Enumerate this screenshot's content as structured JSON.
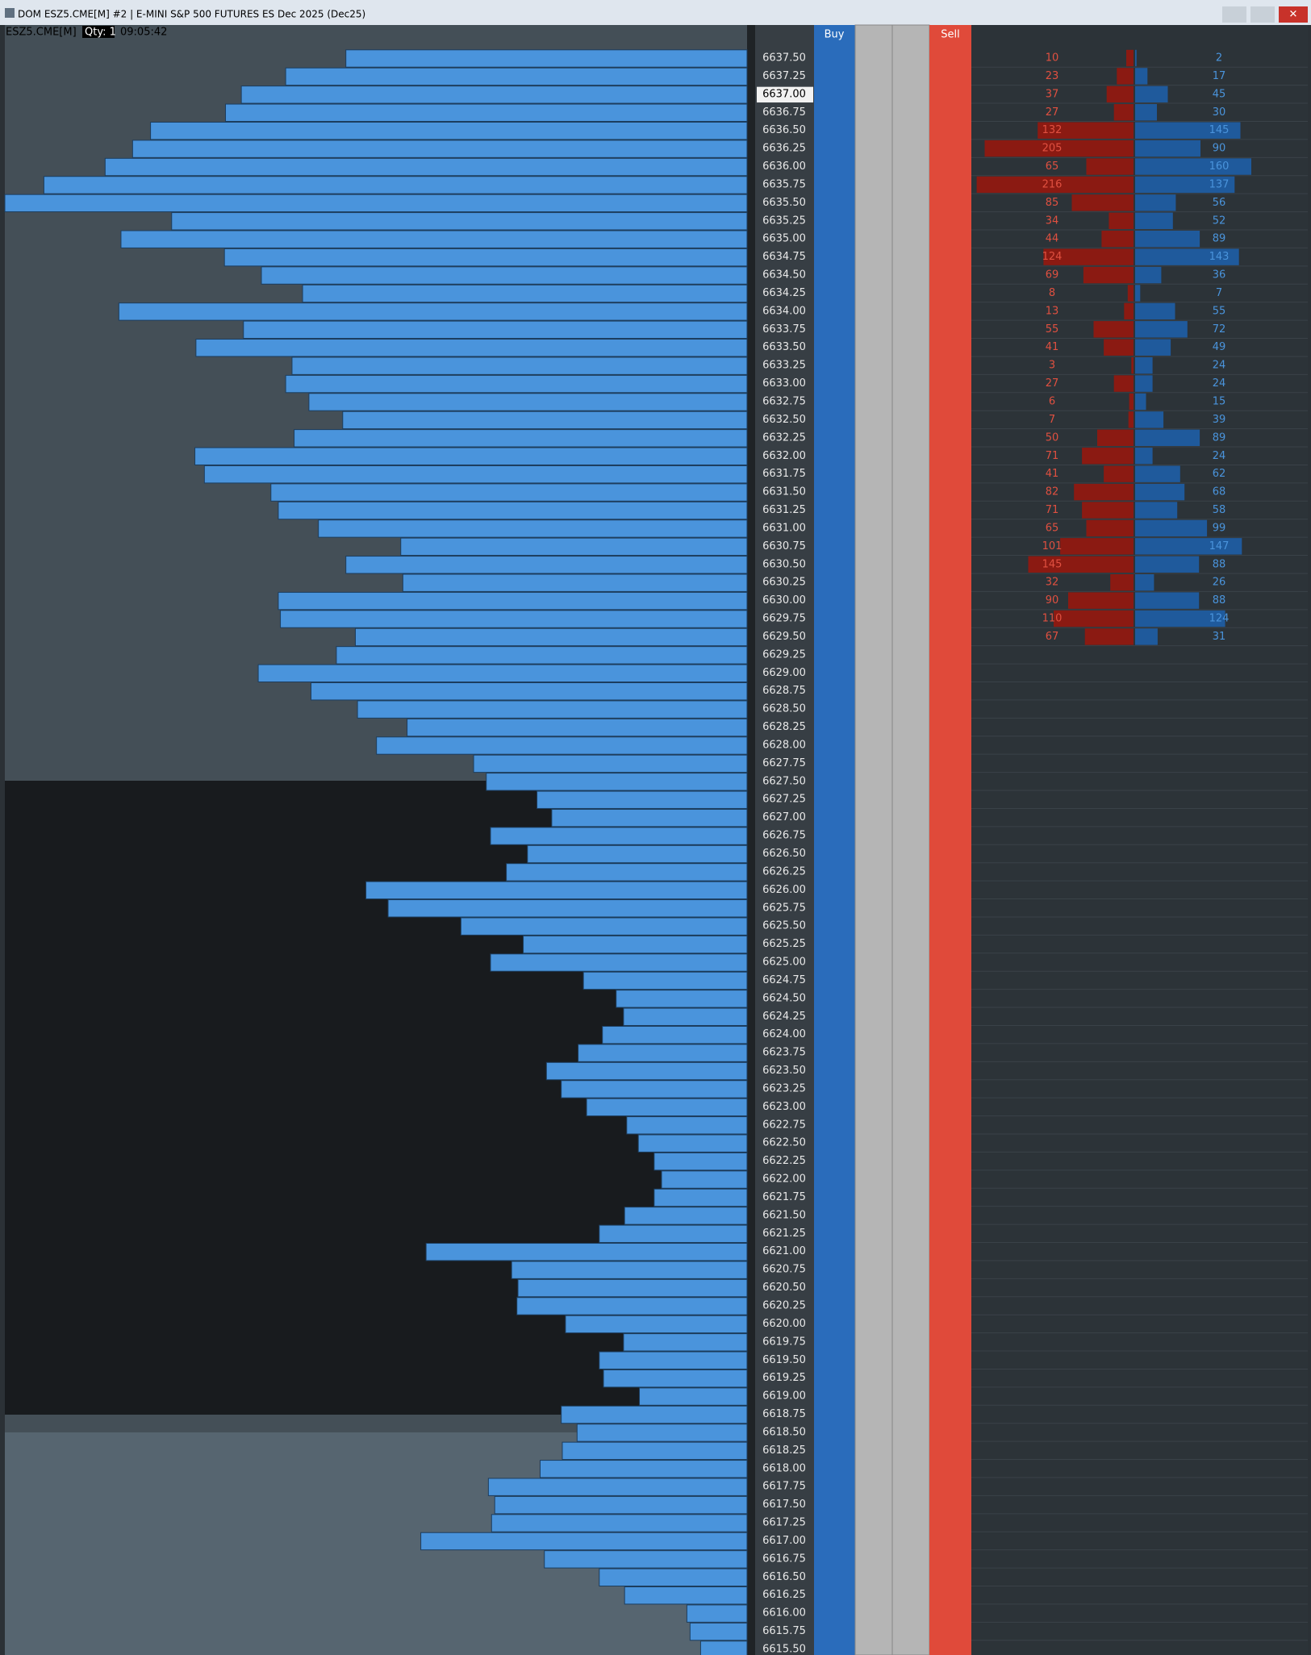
{
  "window": {
    "title": "DOM ESZ5.CME[M] #2 | E-MINI S&P 500 FUTURES ES Dec 2025 (Dec25)"
  },
  "header": {
    "symbol": "ESZ5.CME[M]",
    "qty": "Qty: 1",
    "time": "09:05:42"
  },
  "columns": {
    "buy": "Buy",
    "sell": "Sell"
  },
  "ladder": {
    "prices": [
      "6637.50",
      "6637.25",
      "6637.00",
      "6636.75",
      "6636.50",
      "6636.25",
      "6636.00",
      "6635.75",
      "6635.50",
      "6635.25",
      "6635.00",
      "6634.75",
      "6634.50",
      "6634.25",
      "6634.00",
      "6633.75",
      "6633.50",
      "6633.25",
      "6633.00",
      "6632.75",
      "6632.50",
      "6632.25",
      "6632.00",
      "6631.75",
      "6631.50",
      "6631.25",
      "6631.00",
      "6630.75",
      "6630.50",
      "6630.25",
      "6630.00",
      "6629.75",
      "6629.50",
      "6629.25",
      "6629.00",
      "6628.75",
      "6628.50",
      "6628.25",
      "6628.00",
      "6627.75",
      "6627.50",
      "6627.25",
      "6627.00",
      "6626.75",
      "6626.50",
      "6626.25",
      "6626.00",
      "6625.75",
      "6625.50",
      "6625.25",
      "6625.00",
      "6624.75",
      "6624.50",
      "6624.25",
      "6624.00",
      "6623.75",
      "6623.50",
      "6623.25",
      "6623.00",
      "6622.75",
      "6622.50",
      "6622.25",
      "6622.00",
      "6621.75",
      "6621.50",
      "6621.25",
      "6621.00",
      "6620.75",
      "6620.50",
      "6620.25",
      "6620.00",
      "6619.75",
      "6619.50",
      "6619.25",
      "6619.00",
      "6618.75",
      "6618.50",
      "6618.25",
      "6618.00",
      "6617.75",
      "6617.50",
      "6617.25",
      "6617.00",
      "6616.75",
      "6616.50",
      "6616.25",
      "6616.00",
      "6615.75",
      "6615.50"
    ],
    "profile": [
      380,
      437,
      479,
      494,
      565,
      582,
      608,
      666,
      703,
      545,
      593,
      495,
      460,
      421,
      595,
      477,
      522,
      431,
      437,
      415,
      383,
      429,
      523,
      514,
      451,
      444,
      406,
      328,
      380,
      326,
      444,
      442,
      371,
      389,
      463,
      413,
      369,
      322,
      351,
      259,
      247,
      199,
      185,
      243,
      208,
      228,
      361,
      340,
      271,
      212,
      243,
      155,
      124,
      117,
      137,
      160,
      190,
      176,
      152,
      114,
      103,
      88,
      81,
      88,
      116,
      140,
      304,
      223,
      217,
      218,
      172,
      117,
      140,
      136,
      102,
      176,
      161,
      175,
      196,
      245,
      239,
      242,
      309,
      192,
      140,
      116,
      57,
      54,
      44
    ],
    "sells": [
      10,
      23,
      37,
      27,
      132,
      205,
      65,
      216,
      85,
      34,
      44,
      124,
      69,
      8,
      13,
      55,
      41,
      3,
      27,
      6,
      7,
      50,
      71,
      41,
      82,
      71,
      65,
      101,
      145,
      32,
      90,
      110,
      67
    ],
    "buys": [
      2,
      17,
      45,
      30,
      145,
      90,
      160,
      137,
      56,
      52,
      89,
      143,
      36,
      7,
      55,
      72,
      49,
      24,
      24,
      15,
      39,
      89,
      24,
      62,
      68,
      58,
      99,
      147,
      88,
      26,
      88,
      124,
      31
    ]
  }
}
